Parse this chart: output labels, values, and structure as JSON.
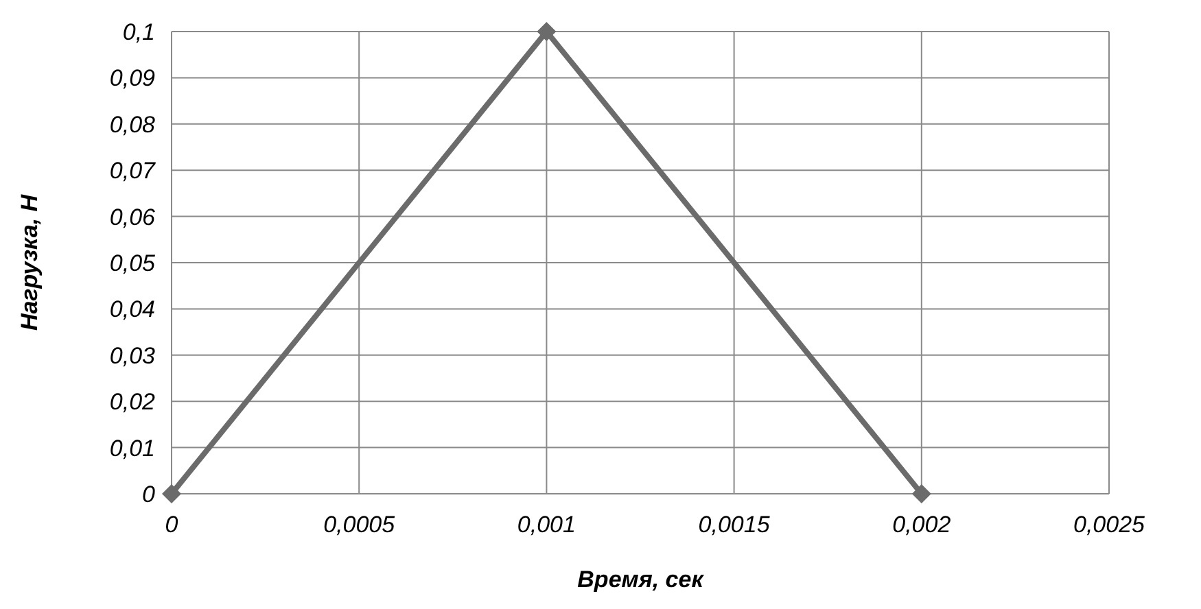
{
  "chart_data": {
    "type": "line",
    "xlabel": "Время, сек",
    "ylabel": "Нагрузка, Н",
    "x": [
      0,
      0.001,
      0.002
    ],
    "series": [
      {
        "color": "#6b6b6b",
        "values": [
          0,
          0.1,
          0
        ]
      }
    ],
    "xlim": [
      0,
      0.0025
    ],
    "ylim": [
      0,
      0.1
    ],
    "xticks": [
      0,
      {
        "value": 0.0005,
        "label": "0,0005"
      },
      {
        "value": 0.001,
        "label": "0,001"
      },
      {
        "value": 0.0015,
        "label": "0,0015"
      },
      {
        "value": 0.002,
        "label": "0,002"
      },
      {
        "value": 0.0025,
        "label": "0,0025"
      }
    ],
    "yticks": [
      0,
      {
        "value": 0.01,
        "label": "0,01"
      },
      {
        "value": 0.02,
        "label": "0,02"
      },
      {
        "value": 0.03,
        "label": "0,03"
      },
      {
        "value": 0.04,
        "label": "0,04"
      },
      {
        "value": 0.05,
        "label": "0,05"
      },
      {
        "value": 0.06,
        "label": "0,06"
      },
      {
        "value": 0.07,
        "label": "0,07"
      },
      {
        "value": 0.08,
        "label": "0,08"
      },
      {
        "value": 0.09,
        "label": "0,09"
      },
      {
        "value": 0.1,
        "label": "0,1"
      }
    ],
    "grid": true,
    "marker": "diamond",
    "line_style": "solid"
  }
}
